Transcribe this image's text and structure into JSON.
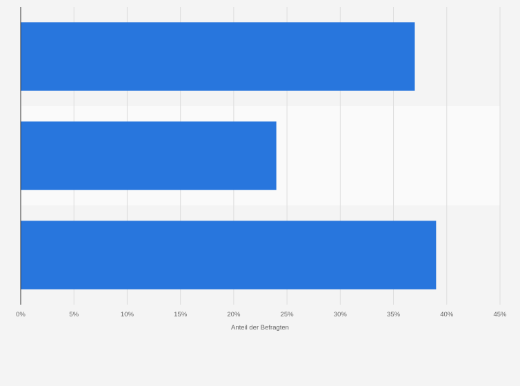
{
  "chart_data": {
    "type": "bar",
    "orientation": "horizontal",
    "categories": [
      "",
      "",
      ""
    ],
    "values": [
      37,
      24,
      39
    ],
    "title": "",
    "xlabel": "Anteil der Befragten",
    "ylabel": "",
    "xlim": [
      0,
      45
    ],
    "x_ticks": [
      0,
      5,
      10,
      15,
      20,
      25,
      30,
      35,
      40,
      45
    ],
    "x_tick_labels": [
      "0%",
      "5%",
      "10%",
      "15%",
      "20%",
      "25%",
      "30%",
      "35%",
      "40%",
      "45%"
    ],
    "grid": true,
    "legend": "none",
    "colors": {
      "bar": "#2876dd",
      "background": "#f4f4f4",
      "band": "#fafafa",
      "grid": "#dddddd",
      "axis": "#333333",
      "text": "#666666"
    }
  }
}
